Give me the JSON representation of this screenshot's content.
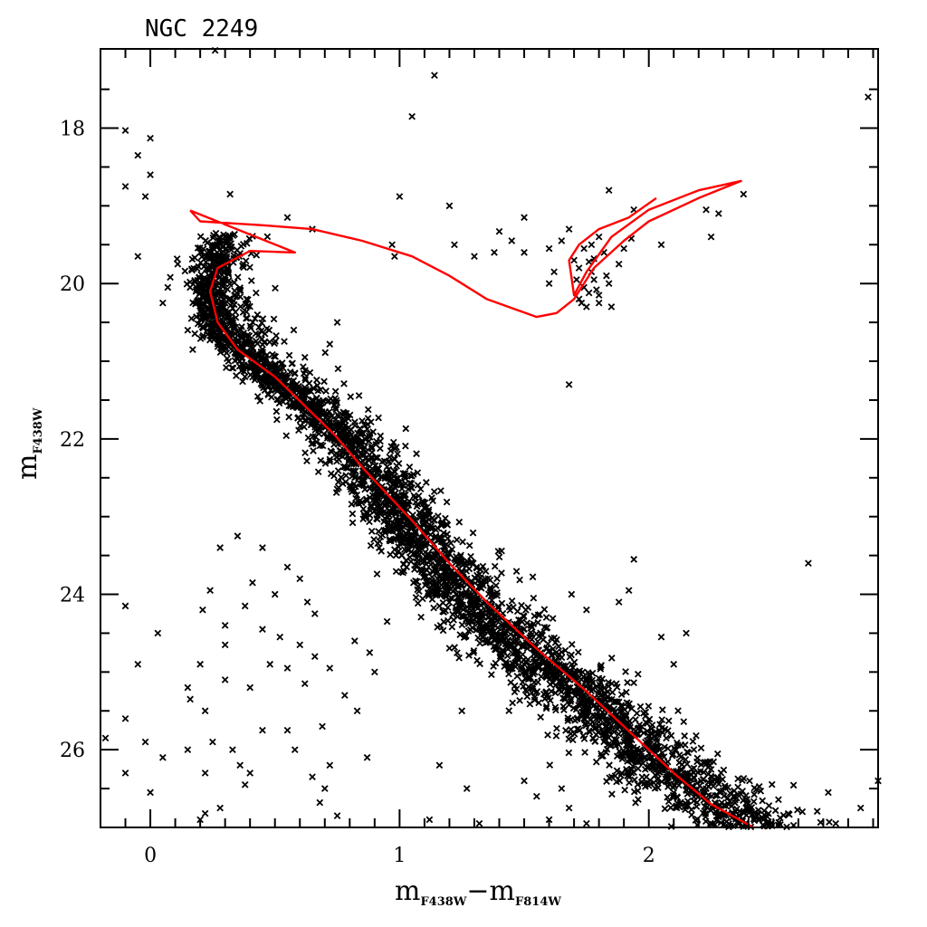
{
  "chart_data": {
    "type": "scatter",
    "title": "NGC 2249",
    "xlabel": {
      "main": "m",
      "sub1": "F438W",
      "sep": "−m",
      "sub2": "F814W"
    },
    "ylabel": {
      "main": "m",
      "sub": "F438W"
    },
    "xlim": [
      -0.2,
      2.92
    ],
    "ylim": [
      27.0,
      16.98
    ],
    "y_inverted": true,
    "x_major_ticks": [
      0,
      1,
      2
    ],
    "x_tick_labels": [
      "0",
      "1",
      "2"
    ],
    "x_minor_ticks": [
      -0.1,
      0.1,
      0.2,
      0.3,
      0.4,
      0.5,
      0.6,
      0.7,
      0.8,
      0.9,
      1.1,
      1.2,
      1.3,
      1.4,
      1.5,
      1.6,
      1.7,
      1.8,
      1.9,
      2.1,
      2.2,
      2.3,
      2.4,
      2.5,
      2.6,
      2.7,
      2.8,
      2.9
    ],
    "y_major_ticks": [
      18,
      20,
      22,
      24,
      26
    ],
    "y_tick_labels": [
      "18",
      "20",
      "22",
      "24",
      "26"
    ],
    "y_minor_ticks": [
      17.5,
      18.5,
      19,
      19.5,
      20.5,
      21,
      21.5,
      22.5,
      23,
      23.5,
      24.5,
      25,
      25.5,
      26.5
    ],
    "marker": {
      "shape": "x",
      "color": "#000000"
    },
    "isochrone_color": "#ff0000",
    "sequence_model": {
      "ridge": [
        [
          19.35,
          0.31
        ],
        [
          19.6,
          0.26
        ],
        [
          20.0,
          0.24
        ],
        [
          20.5,
          0.26
        ],
        [
          21.0,
          0.4
        ],
        [
          21.5,
          0.6
        ],
        [
          22.0,
          0.76
        ],
        [
          22.5,
          0.88
        ],
        [
          23.0,
          1.0
        ],
        [
          23.5,
          1.11
        ],
        [
          24.0,
          1.24
        ],
        [
          24.5,
          1.4
        ],
        [
          25.0,
          1.58
        ],
        [
          25.5,
          1.76
        ],
        [
          26.0,
          1.96
        ],
        [
          26.5,
          2.16
        ],
        [
          27.0,
          2.42
        ]
      ],
      "n_stars": 3300,
      "seed": 2249
    },
    "points": [
      [
        0.26,
        17.0
      ],
      [
        1.14,
        17.32
      ],
      [
        1.05,
        17.85
      ],
      [
        -0.1,
        18.03
      ],
      [
        0.0,
        18.13
      ],
      [
        -0.05,
        18.35
      ],
      [
        -0.1,
        18.75
      ],
      [
        -0.02,
        18.88
      ],
      [
        0.0,
        18.6
      ],
      [
        2.88,
        17.6
      ],
      [
        1.0,
        18.88
      ],
      [
        1.2,
        19.0
      ],
      [
        1.84,
        18.8
      ],
      [
        1.94,
        19.05
      ],
      [
        2.23,
        19.05
      ],
      [
        2.38,
        18.85
      ],
      [
        2.28,
        19.1
      ],
      [
        2.25,
        19.4
      ],
      [
        0.55,
        19.15
      ],
      [
        0.65,
        19.3
      ],
      [
        1.5,
        19.15
      ],
      [
        1.4,
        19.33
      ],
      [
        1.45,
        19.45
      ],
      [
        1.38,
        19.6
      ],
      [
        1.5,
        19.6
      ],
      [
        1.22,
        19.5
      ],
      [
        0.97,
        19.5
      ],
      [
        0.98,
        19.65
      ],
      [
        1.3,
        19.65
      ],
      [
        1.6,
        19.55
      ],
      [
        1.62,
        19.85
      ],
      [
        0.2,
        19.6
      ],
      [
        0.11,
        19.75
      ],
      [
        0.07,
        20.05
      ],
      [
        0.05,
        20.25
      ],
      [
        0.08,
        19.92
      ],
      [
        -0.05,
        19.65
      ],
      [
        0.15,
        20.6
      ],
      [
        0.17,
        20.85
      ],
      [
        0.62,
        20.95
      ],
      [
        0.75,
        20.5
      ],
      [
        0.72,
        20.78
      ],
      [
        1.68,
        21.3
      ],
      [
        1.9,
        19.55
      ],
      [
        1.65,
        19.45
      ],
      [
        1.88,
        19.75
      ],
      [
        1.93,
        19.42
      ],
      [
        2.05,
        19.5
      ],
      [
        1.8,
        20.15
      ],
      [
        1.85,
        20.3
      ],
      [
        1.72,
        19.8
      ],
      [
        1.78,
        19.95
      ],
      [
        1.6,
        20.0
      ],
      [
        1.74,
        20.05
      ],
      [
        1.76,
        20.12
      ],
      [
        1.82,
        19.6
      ],
      [
        1.7,
        19.7
      ],
      [
        1.77,
        19.85
      ],
      [
        1.8,
        20.25
      ],
      [
        1.75,
        20.3
      ],
      [
        1.74,
        19.55
      ],
      [
        1.68,
        19.3
      ],
      [
        1.8,
        19.4
      ],
      [
        1.77,
        19.5
      ],
      [
        1.83,
        19.9
      ],
      [
        1.72,
        20.2
      ],
      [
        1.79,
        20.08
      ],
      [
        1.76,
        19.72
      ],
      [
        1.71,
        19.95
      ],
      [
        1.84,
        20.0
      ],
      [
        1.73,
        20.25
      ],
      [
        1.78,
        19.68
      ],
      [
        0.28,
        23.4
      ],
      [
        0.35,
        23.25
      ],
      [
        0.45,
        23.4
      ],
      [
        0.55,
        23.65
      ],
      [
        0.6,
        23.8
      ],
      [
        0.41,
        23.85
      ],
      [
        0.5,
        24.0
      ],
      [
        0.63,
        24.1
      ],
      [
        0.66,
        24.25
      ],
      [
        0.38,
        24.15
      ],
      [
        0.45,
        24.45
      ],
      [
        0.52,
        24.55
      ],
      [
        0.6,
        24.65
      ],
      [
        0.55,
        24.95
      ],
      [
        0.48,
        24.9
      ],
      [
        0.66,
        24.8
      ],
      [
        0.72,
        24.95
      ],
      [
        0.62,
        25.15
      ],
      [
        0.82,
        24.6
      ],
      [
        0.88,
        24.75
      ],
      [
        0.9,
        25.0
      ],
      [
        0.95,
        24.35
      ],
      [
        0.24,
        23.95
      ],
      [
        0.21,
        24.2
      ],
      [
        0.3,
        24.4
      ],
      [
        0.3,
        24.65
      ],
      [
        0.2,
        24.9
      ],
      [
        0.15,
        25.2
      ],
      [
        0.16,
        25.35
      ],
      [
        0.22,
        25.5
      ],
      [
        0.3,
        25.1
      ],
      [
        0.4,
        25.2
      ],
      [
        0.25,
        25.9
      ],
      [
        0.15,
        26.0
      ],
      [
        0.22,
        26.3
      ],
      [
        0.33,
        26.0
      ],
      [
        0.36,
        26.2
      ],
      [
        0.4,
        26.3
      ],
      [
        0.38,
        26.45
      ],
      [
        0.28,
        26.75
      ],
      [
        0.22,
        26.82
      ],
      [
        0.45,
        25.75
      ],
      [
        0.55,
        25.75
      ],
      [
        0.58,
        26.0
      ],
      [
        0.65,
        26.35
      ],
      [
        0.7,
        26.5
      ],
      [
        0.68,
        26.68
      ],
      [
        0.75,
        26.85
      ],
      [
        0.72,
        26.2
      ],
      [
        0.83,
        25.5
      ],
      [
        0.78,
        25.3
      ],
      [
        0.69,
        25.7
      ],
      [
        0.03,
        24.5
      ],
      [
        -0.1,
        24.15
      ],
      [
        -0.05,
        24.9
      ],
      [
        -0.1,
        25.6
      ],
      [
        -0.02,
        25.9
      ],
      [
        -0.18,
        25.85
      ],
      [
        -0.1,
        26.3
      ],
      [
        0.05,
        26.1
      ],
      [
        0.0,
        26.55
      ],
      [
        0.2,
        26.9
      ],
      [
        1.55,
        26.6
      ],
      [
        1.6,
        26.9
      ],
      [
        1.68,
        26.75
      ],
      [
        1.75,
        26.95
      ],
      [
        1.27,
        26.5
      ],
      [
        1.32,
        26.95
      ],
      [
        1.12,
        26.9
      ],
      [
        0.87,
        26.1
      ],
      [
        1.16,
        26.2
      ],
      [
        1.25,
        25.5
      ],
      [
        1.5,
        26.4
      ],
      [
        1.65,
        26.5
      ],
      [
        1.94,
        23.55
      ],
      [
        1.92,
        23.95
      ],
      [
        1.88,
        24.1
      ],
      [
        1.75,
        24.2
      ],
      [
        1.69,
        24.0
      ],
      [
        2.05,
        24.55
      ],
      [
        2.1,
        24.9
      ],
      [
        2.15,
        24.5
      ],
      [
        2.64,
        23.6
      ],
      [
        2.72,
        26.55
      ],
      [
        2.85,
        26.75
      ],
      [
        2.75,
        26.95
      ],
      [
        2.92,
        26.4
      ],
      [
        0.32,
        18.85
      ]
    ],
    "isochrone": [
      [
        0.16,
        19.06
      ],
      [
        0.3,
        19.24
      ],
      [
        0.58,
        19.6
      ],
      [
        0.4,
        19.58
      ],
      [
        0.27,
        19.8
      ],
      [
        0.24,
        20.1
      ],
      [
        0.27,
        20.5
      ],
      [
        0.35,
        20.85
      ],
      [
        0.5,
        21.2
      ],
      [
        0.74,
        21.95
      ],
      [
        0.86,
        22.4
      ],
      [
        1.05,
        23.05
      ],
      [
        1.2,
        23.6
      ],
      [
        1.35,
        24.1
      ],
      [
        1.55,
        24.7
      ],
      [
        1.75,
        25.25
      ],
      [
        1.95,
        25.85
      ],
      [
        2.1,
        26.3
      ],
      [
        2.25,
        26.7
      ],
      [
        2.42,
        27.0
      ],
      null,
      [
        0.16,
        19.06
      ],
      [
        0.2,
        19.2
      ],
      [
        0.45,
        19.25
      ],
      [
        0.65,
        19.3
      ],
      [
        0.85,
        19.45
      ],
      [
        1.05,
        19.65
      ],
      [
        1.2,
        19.9
      ],
      [
        1.35,
        20.2
      ],
      [
        1.55,
        20.43
      ],
      [
        1.63,
        20.38
      ],
      [
        1.7,
        20.2
      ],
      [
        1.78,
        19.8
      ],
      [
        1.9,
        19.45
      ],
      [
        2.0,
        19.2
      ],
      [
        2.2,
        18.9
      ],
      [
        2.37,
        18.68
      ],
      [
        2.2,
        18.8
      ],
      [
        2.0,
        19.05
      ],
      [
        1.85,
        19.4
      ],
      [
        1.75,
        19.85
      ],
      [
        1.7,
        20.15
      ],
      [
        1.68,
        19.7
      ],
      [
        1.72,
        19.5
      ],
      [
        1.8,
        19.3
      ],
      [
        1.92,
        19.15
      ],
      [
        2.03,
        18.9
      ]
    ]
  }
}
